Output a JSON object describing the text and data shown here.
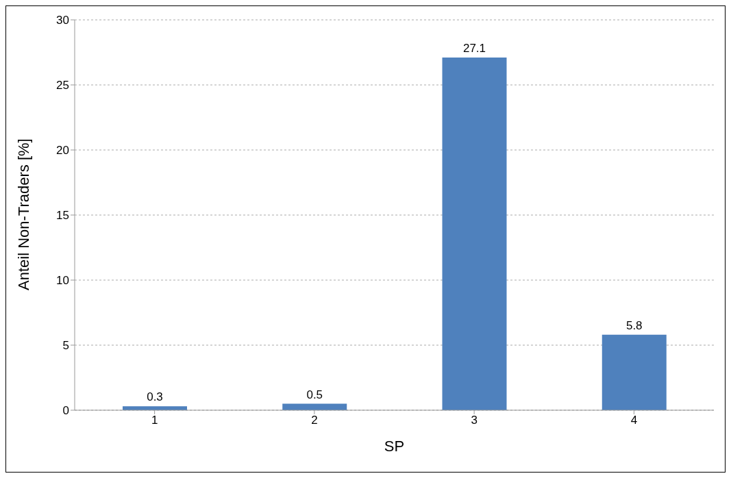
{
  "chart_data": {
    "type": "bar",
    "xlabel": "SP",
    "ylabel": "Anteil Non-Traders [%]",
    "categories": [
      "1",
      "2",
      "3",
      "4"
    ],
    "values": [
      0.3,
      0.5,
      27.1,
      5.8
    ],
    "color": "#4f81bd",
    "ylim": [
      0,
      30
    ],
    "yticks": [
      0,
      5,
      10,
      15,
      20,
      25,
      30
    ],
    "grid": "y",
    "data_labels": true
  }
}
